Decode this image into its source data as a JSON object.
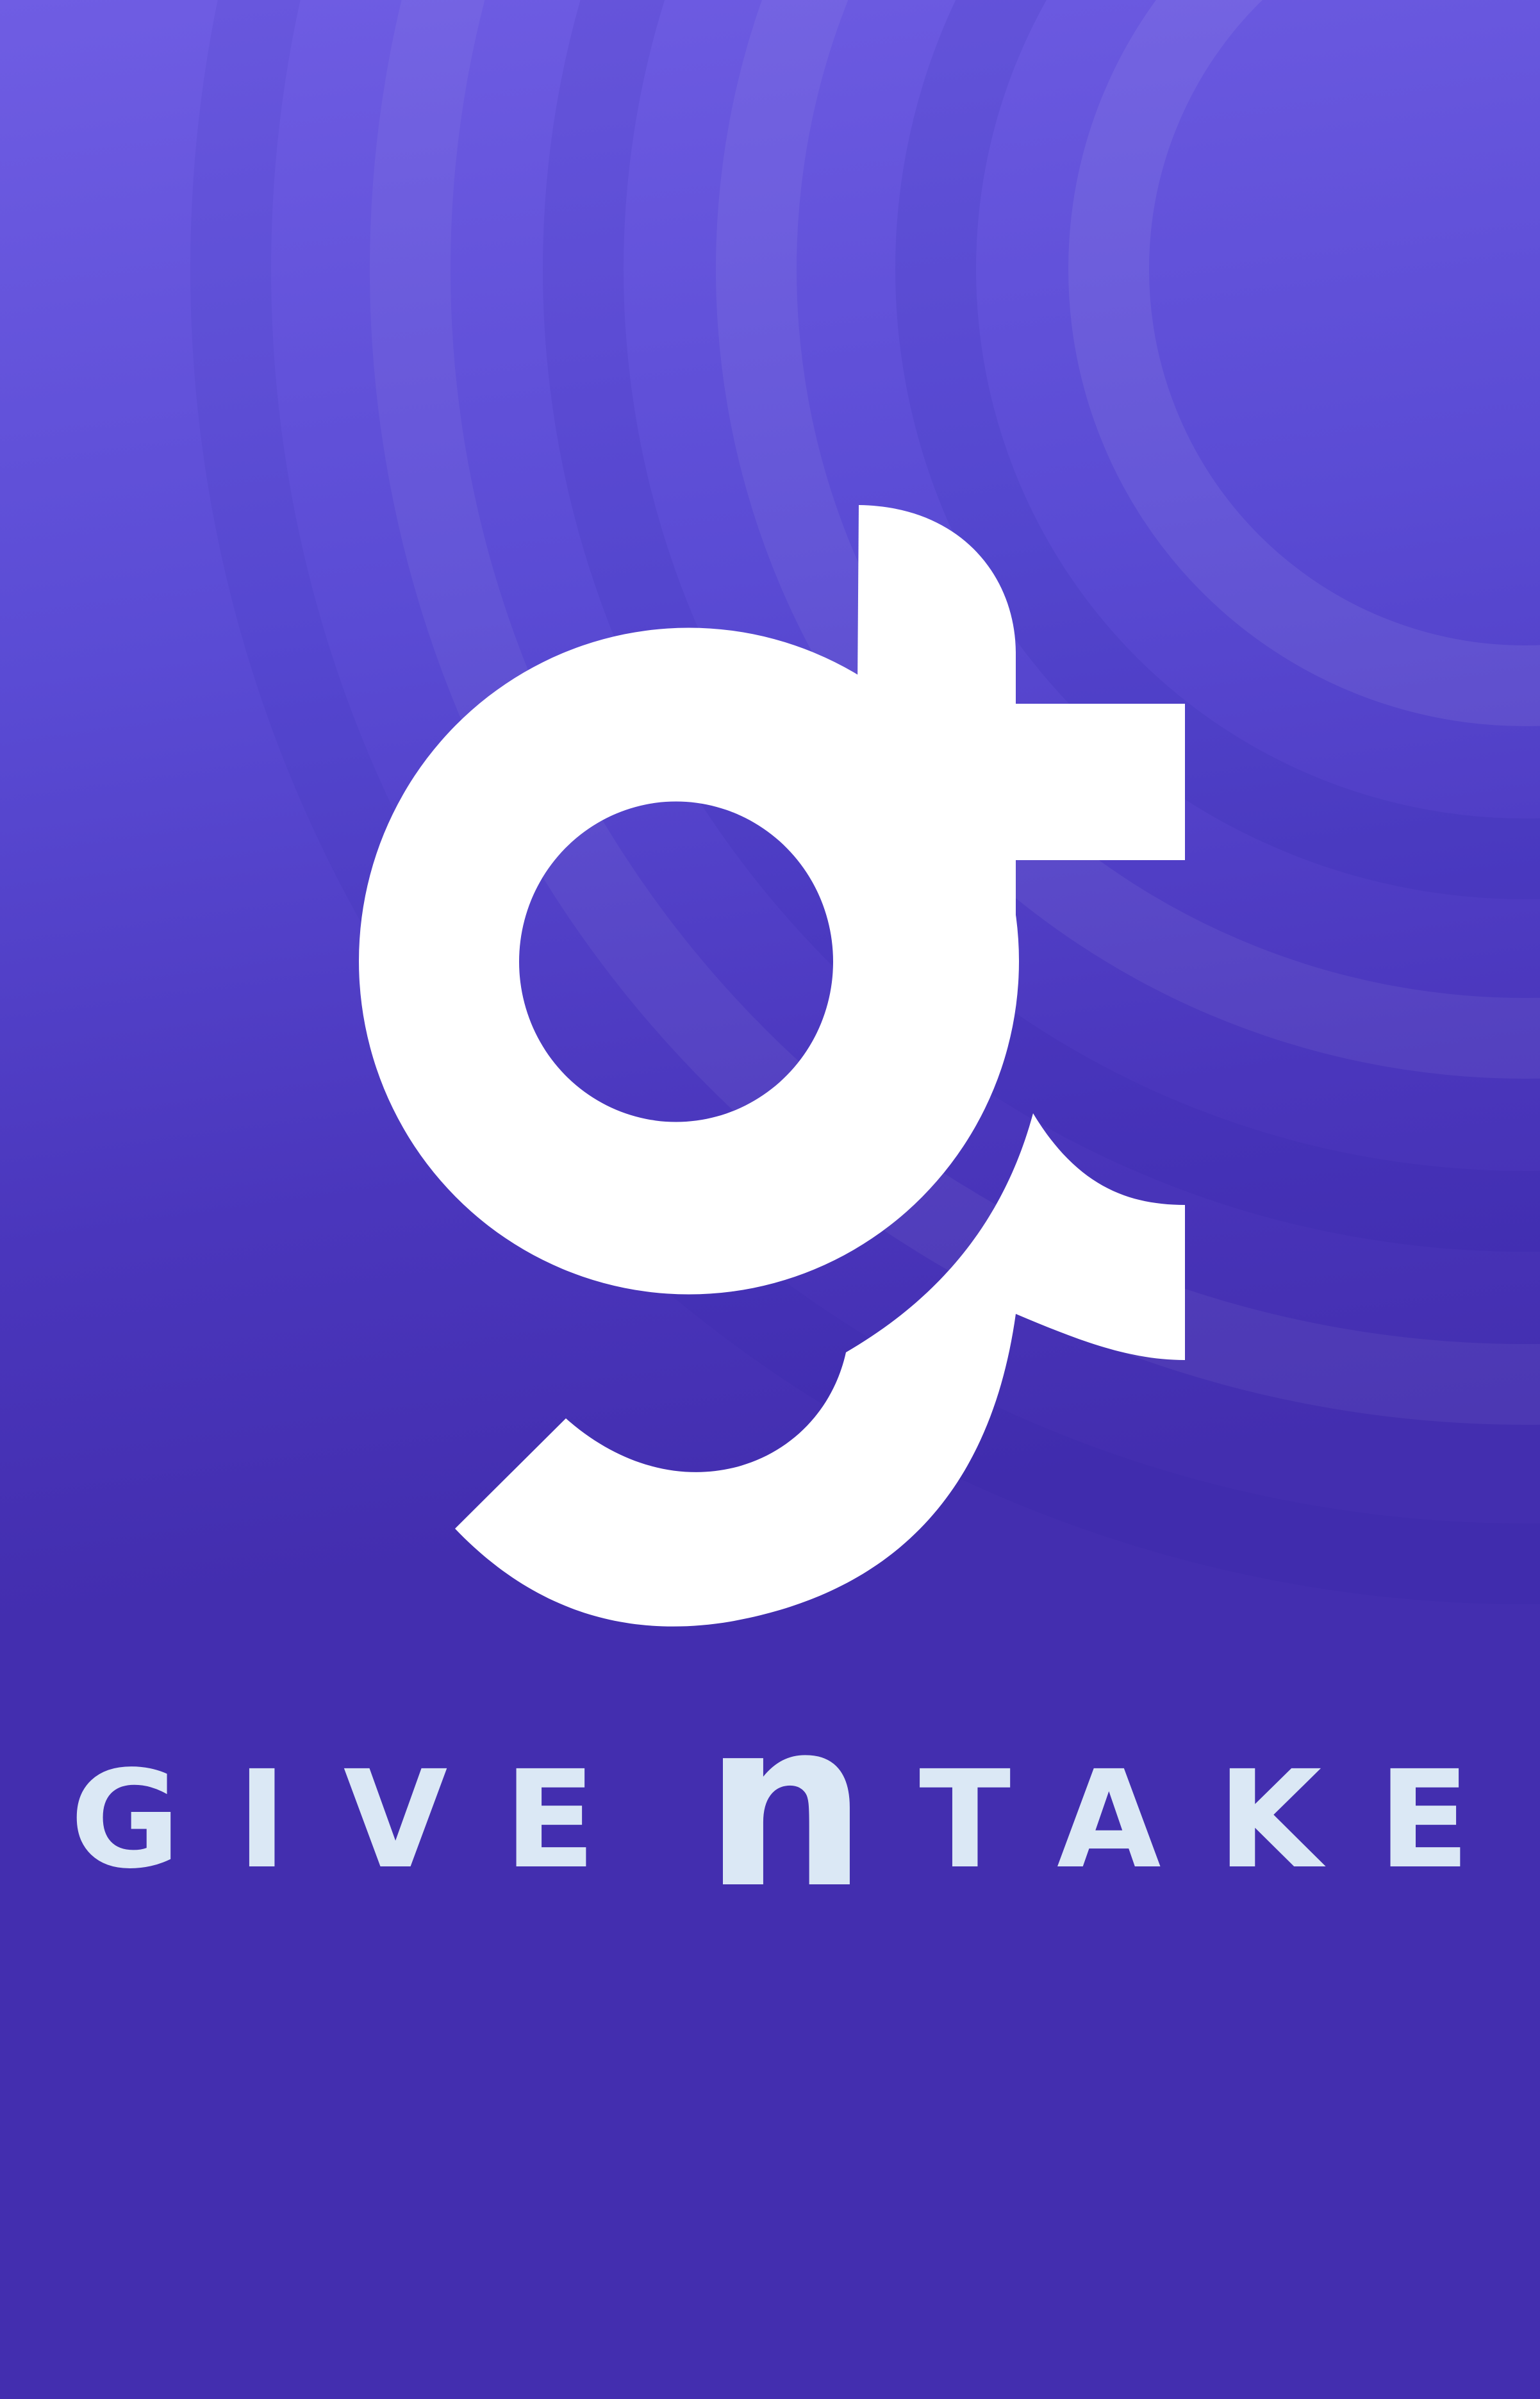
{
  "screen": {
    "name": "splash-screen",
    "colors": {
      "background_top": "#6f5de3",
      "background_bottom": "#432eaf",
      "logo_fill": "#ffffff",
      "wordmark_fill": "#dbe8f5"
    }
  },
  "logo": {
    "icon": "give-n-take-gt-monogram-icon"
  },
  "wordmark": {
    "word1": "GIVE",
    "conjunction": "n",
    "word2": "TAKE"
  }
}
